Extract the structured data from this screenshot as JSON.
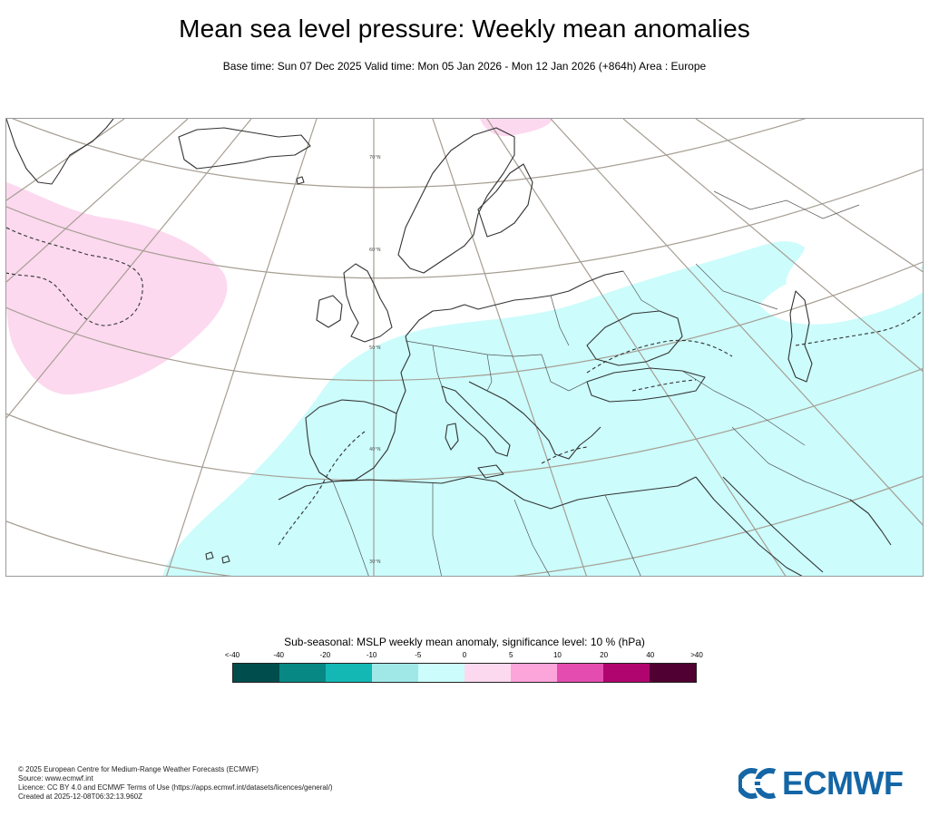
{
  "header": {
    "title": "Mean sea level pressure: Weekly mean anomalies",
    "subtitle": "Base time: Sun 07 Dec 2025 Valid time: Mon 05 Jan 2026 - Mon 12 Jan 2026 (+864h) Area : Europe"
  },
  "map": {
    "region": "Europe",
    "parallels": [
      "70°N",
      "60°N",
      "50°N",
      "40°N",
      "30°N"
    ],
    "colors": {
      "positive_anomaly": "#fcd9ef",
      "negative_anomaly": "#ccfcfc",
      "coastline": "#333333",
      "graticule": "#a69e93"
    }
  },
  "legend": {
    "title": "Sub-seasonal: MSLP weekly mean anomaly, significance level: 10 % (hPa)",
    "ticks": [
      "<-40",
      "-40",
      "-20",
      "-10",
      "-5",
      "0",
      "5",
      "10",
      "20",
      "40",
      ">40"
    ],
    "colors": [
      "#004d4d",
      "#088884",
      "#13b8b4",
      "#a0e8e8",
      "#ccfcfc",
      "#fcd9ef",
      "#fca5db",
      "#e44caf",
      "#b0056f",
      "#500032"
    ]
  },
  "footer": {
    "lines": [
      "© 2025 European Centre for Medium-Range Weather Forecasts (ECMWF)",
      "Source: www.ecmwf.int",
      "Licence: CC BY 4.0 and ECMWF Terms of Use (https://apps.ecmwf.int/datasets/licences/general/)",
      "Created at 2025-12-08T06:32:13.960Z"
    ]
  },
  "logo": {
    "text": "ECMWF",
    "color": "#1466a6"
  }
}
